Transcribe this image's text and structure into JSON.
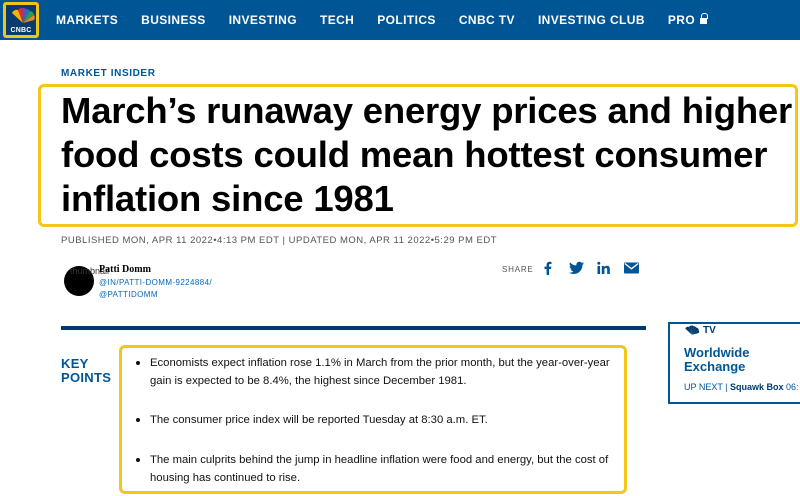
{
  "nav": {
    "logo_text": "CNBC",
    "items": [
      "MARKETS",
      "BUSINESS",
      "INVESTING",
      "TECH",
      "POLITICS",
      "CNBC TV",
      "INVESTING CLUB",
      "PRO"
    ],
    "pro_icon": "lock-icon"
  },
  "article": {
    "kicker": "MARKET INSIDER",
    "headline": "March’s runaway energy prices and higher food costs could mean hottest consumer inflation since 1981",
    "published": "PUBLISHED MON, APR 11 2022•4:13 PM EDT | UPDATED MON, APR 11 2022•5:29 PM EDT"
  },
  "author": {
    "avatar_alt": "thumbnail",
    "name": "Patti Domm",
    "link1": "@IN/PATTI-DOMM-9224884/",
    "link2": "@PATTIDOMM"
  },
  "share": {
    "label": "SHARE",
    "icons": [
      "facebook-icon",
      "twitter-icon",
      "linkedin-icon",
      "email-icon"
    ]
  },
  "key_points": {
    "title_line1": "KEY",
    "title_line2": "POINTS",
    "items": [
      "Economists expect inflation rose 1.1% in March from the prior month, but the year-over-year gain is expected to be 8.4%, the highest since December 1981.",
      "The consumer price index will be reported Tuesday at 8:30 a.m. ET.",
      "The main culprits behind the jump in headline inflation were food and energy, but the cost of housing has continued to rise."
    ]
  },
  "tv_widget": {
    "tag": "TV",
    "title_line1": "Worldwide",
    "title_line2": "Exchange",
    "up_next_label": "UP NEXT | ",
    "up_next_show": "Squawk Box",
    "up_next_time": " 06:"
  },
  "colors": {
    "nav_bg": "#005594",
    "highlight": "#f5c518",
    "link_blue": "#005594",
    "rule": "#003a70"
  }
}
